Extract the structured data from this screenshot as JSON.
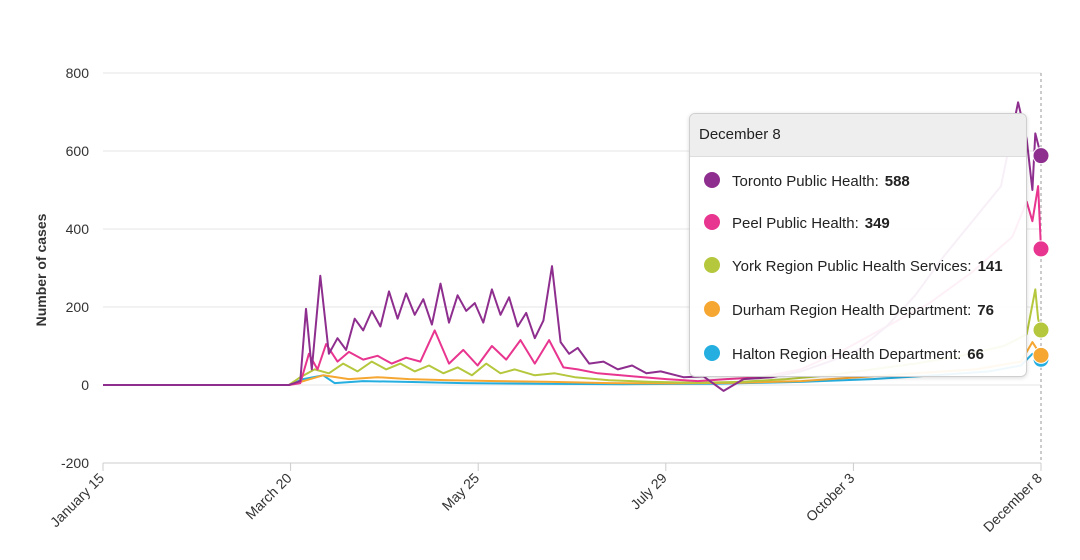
{
  "chart_data": {
    "type": "line",
    "title": "",
    "ylabel": "Number of cases",
    "xlabel": "",
    "ylim": [
      -200,
      800
    ],
    "y_ticks": [
      800,
      600,
      400,
      200,
      0,
      -200
    ],
    "x_ticks": [
      "January 15",
      "March 20",
      "May 25",
      "July 29",
      "October 3",
      "December 8"
    ],
    "x_start": "2020-01-15",
    "x_end": "2020-12-08",
    "grid": "horizontal",
    "series": [
      {
        "name": "Toronto Public Health",
        "color": "#8e2e8e",
        "final_value": 588,
        "points": [
          [
            "2020-01-15",
            0
          ],
          [
            "2020-03-20",
            0
          ],
          [
            "2020-03-24",
            10
          ],
          [
            "2020-03-26",
            195
          ],
          [
            "2020-03-28",
            40
          ],
          [
            "2020-03-31",
            280
          ],
          [
            "2020-04-03",
            80
          ],
          [
            "2020-04-06",
            120
          ],
          [
            "2020-04-09",
            90
          ],
          [
            "2020-04-12",
            170
          ],
          [
            "2020-04-15",
            140
          ],
          [
            "2020-04-18",
            190
          ],
          [
            "2020-04-21",
            150
          ],
          [
            "2020-04-24",
            240
          ],
          [
            "2020-04-27",
            170
          ],
          [
            "2020-04-30",
            235
          ],
          [
            "2020-05-03",
            180
          ],
          [
            "2020-05-06",
            220
          ],
          [
            "2020-05-09",
            155
          ],
          [
            "2020-05-12",
            260
          ],
          [
            "2020-05-15",
            160
          ],
          [
            "2020-05-18",
            230
          ],
          [
            "2020-05-21",
            190
          ],
          [
            "2020-05-24",
            210
          ],
          [
            "2020-05-27",
            160
          ],
          [
            "2020-05-30",
            245
          ],
          [
            "2020-06-02",
            180
          ],
          [
            "2020-06-05",
            225
          ],
          [
            "2020-06-08",
            150
          ],
          [
            "2020-06-11",
            185
          ],
          [
            "2020-06-14",
            120
          ],
          [
            "2020-06-17",
            165
          ],
          [
            "2020-06-20",
            305
          ],
          [
            "2020-06-23",
            110
          ],
          [
            "2020-06-26",
            80
          ],
          [
            "2020-06-29",
            95
          ],
          [
            "2020-07-03",
            55
          ],
          [
            "2020-07-08",
            60
          ],
          [
            "2020-07-13",
            40
          ],
          [
            "2020-07-18",
            50
          ],
          [
            "2020-07-23",
            30
          ],
          [
            "2020-07-28",
            35
          ],
          [
            "2020-08-05",
            20
          ],
          [
            "2020-08-12",
            22
          ],
          [
            "2020-08-19",
            -15
          ],
          [
            "2020-08-26",
            15
          ],
          [
            "2020-09-05",
            20
          ],
          [
            "2020-09-15",
            35
          ],
          [
            "2020-09-25",
            60
          ],
          [
            "2020-10-05",
            90
          ],
          [
            "2020-10-15",
            150
          ],
          [
            "2020-10-25",
            230
          ],
          [
            "2020-11-04",
            330
          ],
          [
            "2020-11-14",
            420
          ],
          [
            "2020-11-24",
            510
          ],
          [
            "2020-11-30",
            725
          ],
          [
            "2020-12-03",
            630
          ],
          [
            "2020-12-05",
            500
          ],
          [
            "2020-12-06",
            645
          ],
          [
            "2020-12-08",
            588
          ]
        ]
      },
      {
        "name": "Peel Public Health",
        "color": "#e8358f",
        "final_value": 349,
        "points": [
          [
            "2020-01-15",
            0
          ],
          [
            "2020-03-20",
            0
          ],
          [
            "2020-03-24",
            5
          ],
          [
            "2020-03-27",
            80
          ],
          [
            "2020-03-30",
            40
          ],
          [
            "2020-04-02",
            105
          ],
          [
            "2020-04-06",
            60
          ],
          [
            "2020-04-10",
            85
          ],
          [
            "2020-04-15",
            65
          ],
          [
            "2020-04-20",
            75
          ],
          [
            "2020-04-25",
            55
          ],
          [
            "2020-04-30",
            70
          ],
          [
            "2020-05-05",
            60
          ],
          [
            "2020-05-10",
            140
          ],
          [
            "2020-05-15",
            55
          ],
          [
            "2020-05-20",
            90
          ],
          [
            "2020-05-25",
            50
          ],
          [
            "2020-05-30",
            100
          ],
          [
            "2020-06-04",
            65
          ],
          [
            "2020-06-09",
            115
          ],
          [
            "2020-06-14",
            55
          ],
          [
            "2020-06-19",
            115
          ],
          [
            "2020-06-24",
            45
          ],
          [
            "2020-06-29",
            40
          ],
          [
            "2020-07-06",
            30
          ],
          [
            "2020-07-14",
            25
          ],
          [
            "2020-07-22",
            20
          ],
          [
            "2020-07-30",
            15
          ],
          [
            "2020-08-10",
            10
          ],
          [
            "2020-08-20",
            15
          ],
          [
            "2020-09-01",
            20
          ],
          [
            "2020-09-15",
            40
          ],
          [
            "2020-09-30",
            90
          ],
          [
            "2020-10-15",
            150
          ],
          [
            "2020-10-30",
            210
          ],
          [
            "2020-11-14",
            290
          ],
          [
            "2020-11-28",
            380
          ],
          [
            "2020-12-03",
            470
          ],
          [
            "2020-12-05",
            420
          ],
          [
            "2020-12-07",
            510
          ],
          [
            "2020-12-08",
            349
          ]
        ]
      },
      {
        "name": "York Region Public Health Services",
        "color": "#b5c73c",
        "final_value": 141,
        "points": [
          [
            "2020-01-15",
            0
          ],
          [
            "2020-03-20",
            0
          ],
          [
            "2020-03-24",
            20
          ],
          [
            "2020-03-29",
            40
          ],
          [
            "2020-04-03",
            30
          ],
          [
            "2020-04-08",
            55
          ],
          [
            "2020-04-13",
            35
          ],
          [
            "2020-04-18",
            60
          ],
          [
            "2020-04-23",
            40
          ],
          [
            "2020-04-28",
            55
          ],
          [
            "2020-05-03",
            35
          ],
          [
            "2020-05-08",
            50
          ],
          [
            "2020-05-13",
            30
          ],
          [
            "2020-05-18",
            45
          ],
          [
            "2020-05-23",
            25
          ],
          [
            "2020-05-28",
            55
          ],
          [
            "2020-06-02",
            30
          ],
          [
            "2020-06-07",
            40
          ],
          [
            "2020-06-14",
            25
          ],
          [
            "2020-06-21",
            30
          ],
          [
            "2020-06-28",
            20
          ],
          [
            "2020-07-10",
            12
          ],
          [
            "2020-07-25",
            8
          ],
          [
            "2020-08-10",
            6
          ],
          [
            "2020-08-25",
            8
          ],
          [
            "2020-09-10",
            15
          ],
          [
            "2020-09-25",
            25
          ],
          [
            "2020-10-10",
            40
          ],
          [
            "2020-10-25",
            55
          ],
          [
            "2020-11-10",
            75
          ],
          [
            "2020-11-25",
            100
          ],
          [
            "2020-12-03",
            130
          ],
          [
            "2020-12-06",
            245
          ],
          [
            "2020-12-07",
            170
          ],
          [
            "2020-12-08",
            141
          ]
        ]
      },
      {
        "name": "Durham Region Health Department",
        "color": "#f5a732",
        "final_value": 76,
        "points": [
          [
            "2020-01-15",
            0
          ],
          [
            "2020-03-20",
            0
          ],
          [
            "2020-03-25",
            10
          ],
          [
            "2020-04-01",
            25
          ],
          [
            "2020-04-10",
            15
          ],
          [
            "2020-04-20",
            20
          ],
          [
            "2020-05-01",
            15
          ],
          [
            "2020-05-15",
            12
          ],
          [
            "2020-06-01",
            10
          ],
          [
            "2020-06-20",
            8
          ],
          [
            "2020-07-10",
            5
          ],
          [
            "2020-08-01",
            4
          ],
          [
            "2020-08-25",
            6
          ],
          [
            "2020-09-15",
            10
          ],
          [
            "2020-10-05",
            20
          ],
          [
            "2020-10-25",
            30
          ],
          [
            "2020-11-15",
            40
          ],
          [
            "2020-12-01",
            60
          ],
          [
            "2020-12-05",
            110
          ],
          [
            "2020-12-08",
            76
          ]
        ]
      },
      {
        "name": "Halton Region Health Department",
        "color": "#25aee0",
        "final_value": 66,
        "points": [
          [
            "2020-01-15",
            0
          ],
          [
            "2020-03-20",
            0
          ],
          [
            "2020-03-25",
            15
          ],
          [
            "2020-04-01",
            25
          ],
          [
            "2020-04-05",
            5
          ],
          [
            "2020-04-15",
            10
          ],
          [
            "2020-04-30",
            8
          ],
          [
            "2020-05-20",
            5
          ],
          [
            "2020-06-15",
            3
          ],
          [
            "2020-07-15",
            2
          ],
          [
            "2020-08-15",
            3
          ],
          [
            "2020-09-15",
            8
          ],
          [
            "2020-10-10",
            15
          ],
          [
            "2020-11-01",
            25
          ],
          [
            "2020-11-20",
            35
          ],
          [
            "2020-12-01",
            50
          ],
          [
            "2020-12-05",
            80
          ],
          [
            "2020-12-08",
            66
          ]
        ]
      }
    ]
  },
  "tooltip": {
    "date": "December 8",
    "rows": [
      {
        "label": "Toronto Public Health:",
        "value": "588",
        "color": "#8e2e8e"
      },
      {
        "label": "Peel Public Health:",
        "value": "349",
        "color": "#e8358f"
      },
      {
        "label": "York Region Public Health Services:",
        "value": "141",
        "color": "#b5c73c"
      },
      {
        "label": "Durham Region Health Department:",
        "value": "76",
        "color": "#f5a732"
      },
      {
        "label": "Halton Region Health Department:",
        "value": "66",
        "color": "#25aee0"
      }
    ]
  }
}
